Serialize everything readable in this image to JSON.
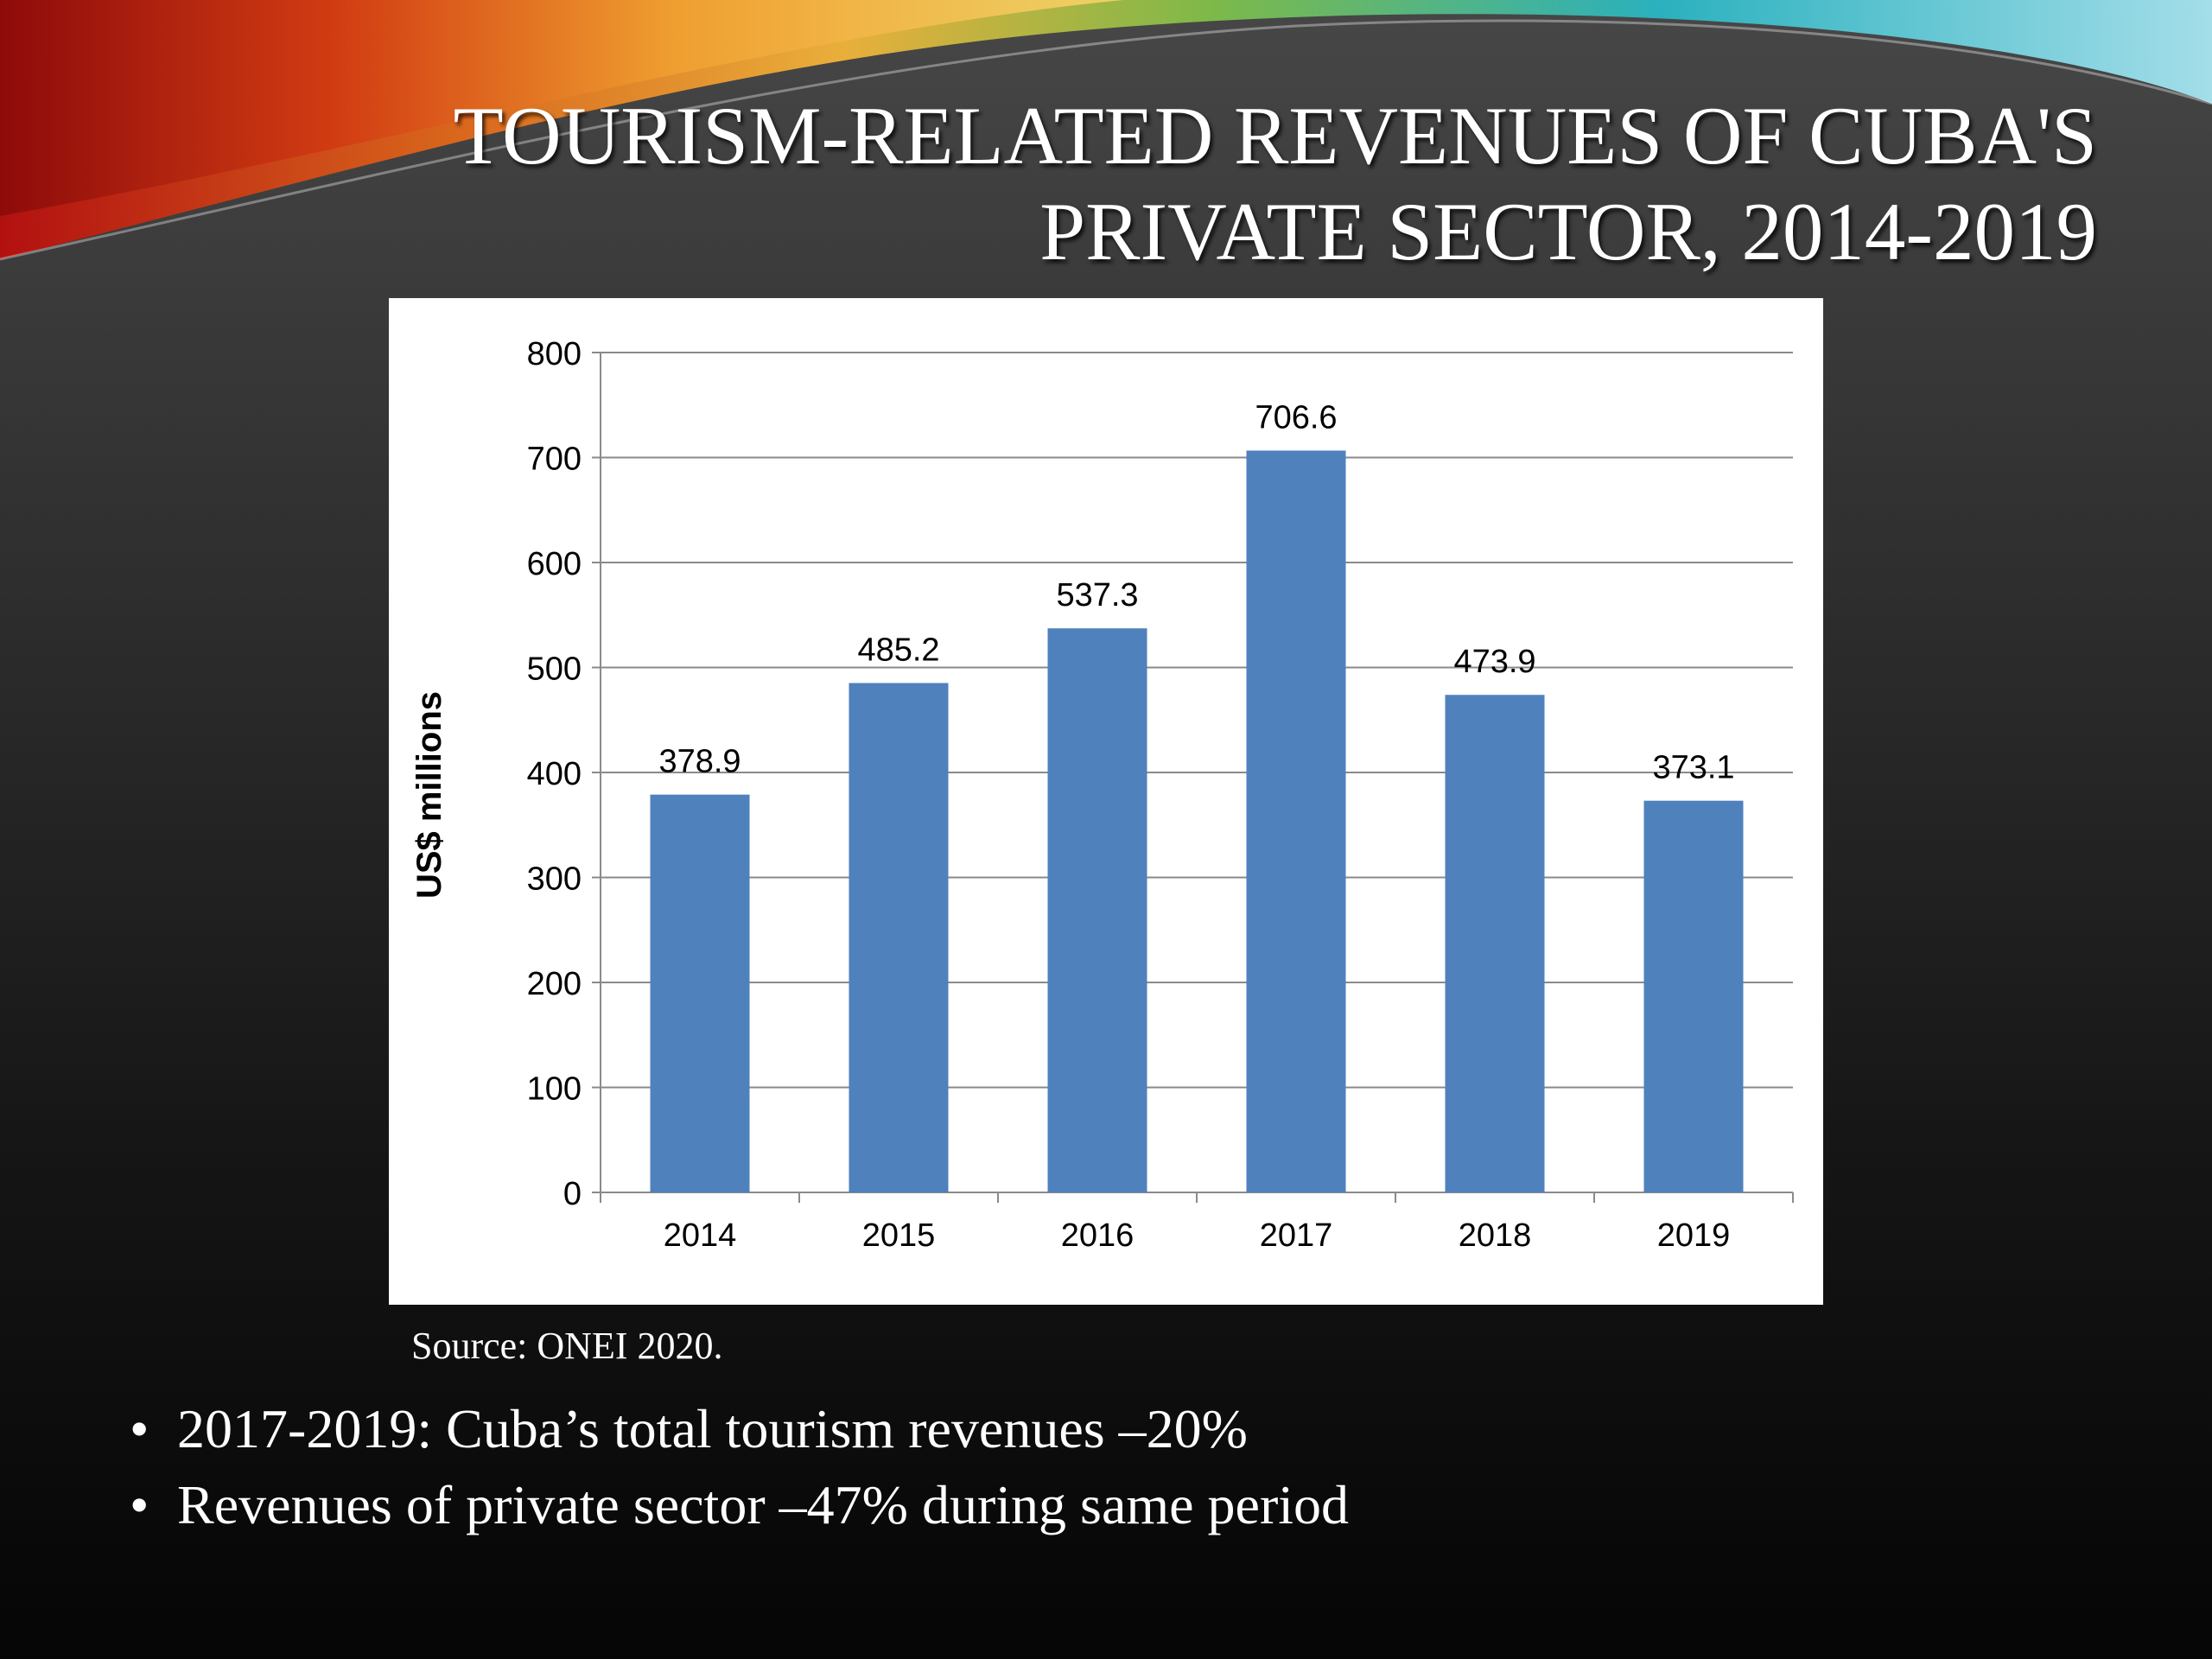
{
  "slide": {
    "title": "TOURISM-RELATED REVENUES OF CUBA'S PRIVATE SECTOR, 2014-2019",
    "source": "Source: ONEI 2020.",
    "bullets": [
      "2017-2019: Cuba’s total tourism revenues –20%",
      "Revenues of private sector –47% during same period"
    ],
    "bullet_glyph": "•"
  },
  "chart_data": {
    "type": "bar",
    "categories": [
      "2014",
      "2015",
      "2016",
      "2017",
      "2018",
      "2019"
    ],
    "values": [
      378.9,
      485.2,
      537.3,
      706.6,
      473.9,
      373.1
    ],
    "data_labels": [
      "378.9",
      "485.2",
      "537.3",
      "706.6",
      "473.9",
      "373.1"
    ],
    "ylabel": "US$ millions",
    "ylim": [
      0,
      800
    ],
    "yticks": [
      0,
      100,
      200,
      300,
      400,
      500,
      600,
      700,
      800
    ],
    "grid": true,
    "bar_color": "#4f81bd"
  }
}
